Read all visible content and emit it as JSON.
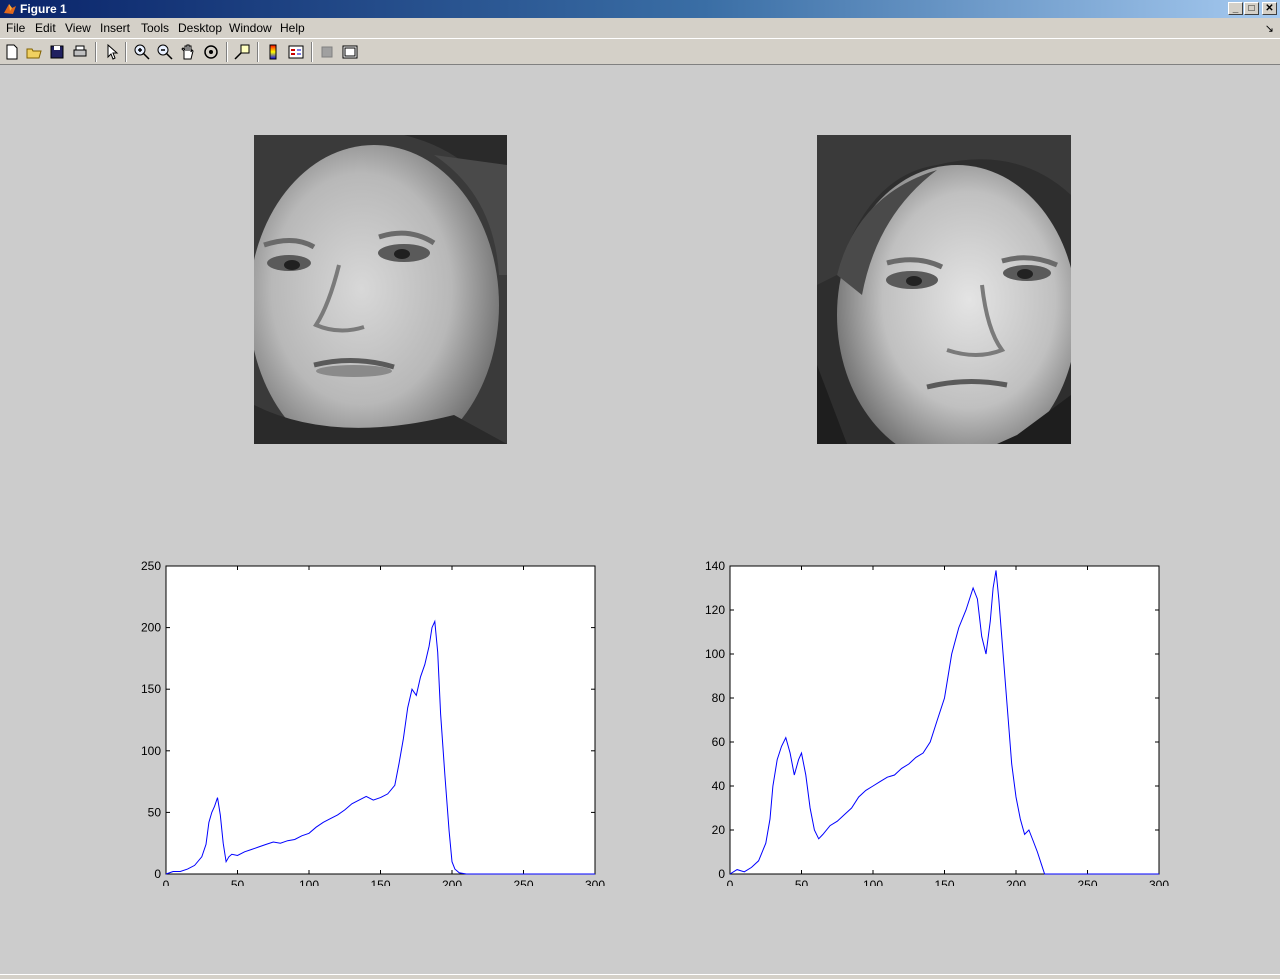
{
  "window": {
    "title": "Figure 1"
  },
  "menu": {
    "items": [
      {
        "label": "File",
        "name": "file"
      },
      {
        "label": "Edit",
        "name": "edit"
      },
      {
        "label": "View",
        "name": "view"
      },
      {
        "label": "Insert",
        "name": "insert"
      },
      {
        "label": "Tools",
        "name": "tools"
      },
      {
        "label": "Desktop",
        "name": "desktop"
      },
      {
        "label": "Window",
        "name": "window"
      },
      {
        "label": "Help",
        "name": "help"
      }
    ]
  },
  "toolbar": {
    "icons": [
      "new-figure-icon",
      "open-file-icon",
      "save-figure-icon",
      "print-figure-icon",
      "edit-plot-icon",
      "zoom-in-icon",
      "zoom-out-icon",
      "pan-icon",
      "rotate-3d-icon",
      "data-cursor-icon",
      "colorbar-icon",
      "legend-icon",
      "hide-plot-tools-icon",
      "show-plot-tools-icon"
    ]
  },
  "images": [
    {
      "name": "face-image-1",
      "description": "grayscale face photo",
      "icon": "face-photo"
    },
    {
      "name": "face-image-2",
      "description": "grayscale face photo",
      "icon": "face-photo"
    }
  ],
  "chart_data": [
    {
      "type": "line",
      "title": "",
      "xlabel": "",
      "ylabel": "",
      "xlim": [
        0,
        300
      ],
      "ylim": [
        0,
        250
      ],
      "xticks": [
        0,
        50,
        100,
        150,
        200,
        250,
        300
      ],
      "yticks": [
        0,
        50,
        100,
        150,
        200,
        250
      ],
      "grid": false,
      "color": "#0000ff",
      "x": [
        0,
        5,
        10,
        15,
        20,
        25,
        28,
        30,
        32,
        34,
        36,
        38,
        40,
        42,
        44,
        46,
        50,
        55,
        60,
        65,
        70,
        75,
        80,
        85,
        90,
        95,
        100,
        105,
        110,
        115,
        120,
        125,
        130,
        135,
        140,
        145,
        150,
        155,
        160,
        163,
        166,
        169,
        172,
        175,
        178,
        181,
        184,
        186,
        188,
        190,
        192,
        195,
        198,
        200,
        202,
        205,
        210,
        215,
        220,
        250,
        300
      ],
      "y": [
        0,
        2,
        2,
        4,
        7,
        14,
        24,
        42,
        50,
        55,
        62,
        48,
        25,
        10,
        14,
        16,
        15,
        18,
        20,
        22,
        24,
        26,
        25,
        27,
        28,
        31,
        33,
        38,
        42,
        45,
        48,
        52,
        57,
        60,
        63,
        60,
        62,
        65,
        72,
        90,
        110,
        135,
        150,
        145,
        160,
        170,
        185,
        200,
        205,
        180,
        130,
        80,
        35,
        10,
        4,
        1,
        0,
        0,
        0,
        0,
        0
      ]
    },
    {
      "type": "line",
      "title": "",
      "xlabel": "",
      "ylabel": "",
      "xlim": [
        0,
        300
      ],
      "ylim": [
        0,
        140
      ],
      "xticks": [
        0,
        50,
        100,
        150,
        200,
        250,
        300
      ],
      "yticks": [
        0,
        20,
        40,
        60,
        80,
        100,
        120,
        140
      ],
      "grid": false,
      "color": "#0000ff",
      "x": [
        0,
        5,
        10,
        15,
        20,
        25,
        28,
        30,
        33,
        36,
        39,
        42,
        45,
        48,
        50,
        53,
        56,
        59,
        62,
        65,
        70,
        75,
        80,
        85,
        90,
        95,
        100,
        105,
        110,
        115,
        120,
        125,
        130,
        135,
        140,
        145,
        150,
        155,
        160,
        165,
        170,
        173,
        176,
        179,
        182,
        184,
        186,
        188,
        191,
        194,
        197,
        200,
        203,
        206,
        209,
        212,
        215,
        218,
        220,
        250,
        300
      ],
      "y": [
        0,
        2,
        1,
        3,
        6,
        14,
        25,
        40,
        52,
        58,
        62,
        55,
        45,
        52,
        55,
        45,
        30,
        20,
        16,
        18,
        22,
        24,
        27,
        30,
        35,
        38,
        40,
        42,
        44,
        45,
        48,
        50,
        53,
        55,
        60,
        70,
        80,
        100,
        112,
        120,
        130,
        125,
        108,
        100,
        115,
        130,
        138,
        125,
        100,
        75,
        50,
        35,
        25,
        18,
        20,
        15,
        10,
        4,
        0,
        0,
        0
      ]
    }
  ]
}
